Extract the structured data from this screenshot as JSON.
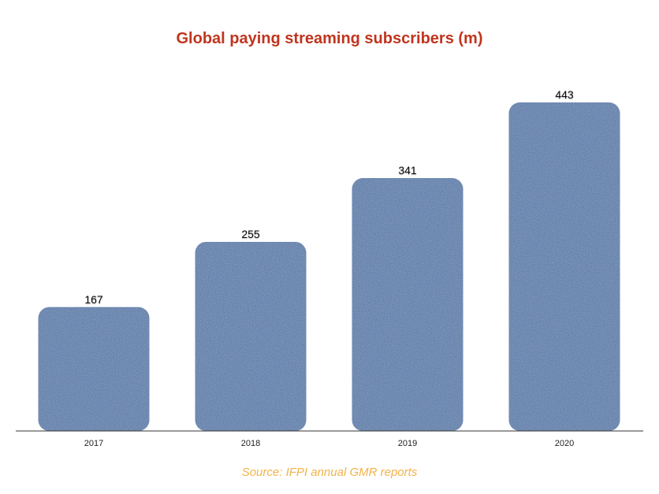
{
  "chart_data": {
    "type": "bar",
    "title": "Global paying streaming subscribers (m)",
    "categories": [
      "2017",
      "2018",
      "2019",
      "2020"
    ],
    "values": [
      167,
      255,
      341,
      443
    ],
    "data_labels": [
      "167",
      "255",
      "341",
      "443"
    ],
    "xlabel": "",
    "ylabel": "",
    "ylim": [
      0,
      443
    ],
    "grid": false,
    "legend": "none"
  },
  "source": "Source: IFPI annual GMR reports",
  "colors": {
    "title": "#c0351f",
    "bar": "#4c6e9f",
    "bar_texture": "#6b88b6",
    "axis": "#333333",
    "source": "#f2b24a"
  }
}
